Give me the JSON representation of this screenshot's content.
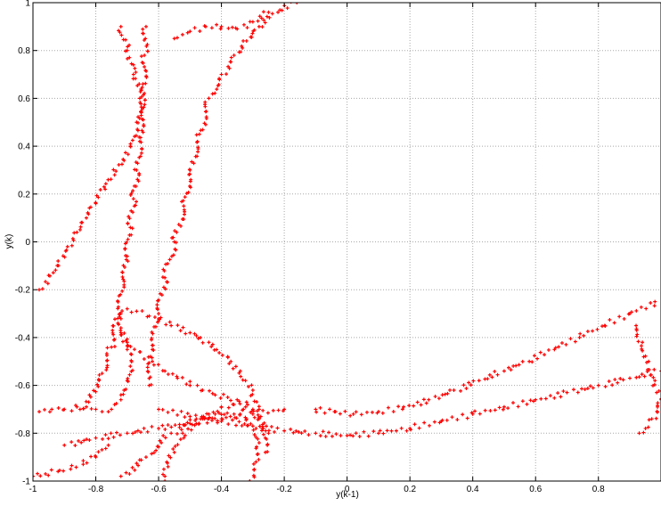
{
  "chart_data": {
    "type": "scatter",
    "title": "",
    "xlabel": "y(k-1)",
    "ylabel": "y(k)",
    "xlim": [
      -1,
      1
    ],
    "ylim": [
      -1,
      1
    ],
    "grid": true,
    "legend": "none",
    "marker": "+",
    "marker_color": "#ff0000",
    "x_tick_labels": [
      "-1",
      "-0.8",
      "-0.6",
      "-0.4",
      "-0.2",
      "0",
      "0.2",
      "0.4",
      "0.6",
      "0.8"
    ],
    "y_tick_labels": [
      "1",
      "0.8",
      "0.6",
      "0.4",
      "0.2",
      "0",
      "-0.2",
      "-0.4",
      "-0.6",
      "-0.8",
      "-1"
    ],
    "x_ticks": [
      -1,
      -0.8,
      -0.6,
      -0.4,
      -0.2,
      0,
      0.2,
      0.4,
      0.6,
      0.8
    ],
    "y_ticks": [
      1,
      0.8,
      0.6,
      0.4,
      0.2,
      0,
      -0.2,
      -0.4,
      -0.6,
      -0.8,
      -1
    ],
    "series": [
      {
        "x": [
          -0.85,
          -0.82,
          -0.78,
          -0.75,
          -0.73,
          -0.71,
          -0.7,
          -0.69,
          -0.68,
          -0.67,
          -0.66,
          -0.655,
          -0.65,
          -0.645,
          -0.64,
          -0.63,
          -0.62,
          -0.6,
          -0.58,
          -0.55,
          -0.52,
          -0.5,
          -0.47,
          -0.44,
          -0.4,
          -0.36,
          -0.32,
          -0.28,
          -0.22,
          -0.16,
          -0.1,
          -0.04,
          0.02,
          0.1,
          0.18,
          0.26,
          0.34,
          0.42,
          0.5,
          0.58,
          0.66,
          0.74,
          0.82,
          0.9,
          0.98,
          -0.98,
          -0.95,
          -0.92,
          -0.89,
          -0.86,
          -0.83,
          -0.8,
          -0.77,
          -0.74,
          -0.71,
          -0.69,
          -0.67,
          -0.66,
          -0.68,
          -0.7,
          -0.72,
          -0.76,
          -0.8,
          -0.84,
          -0.88,
          -0.92,
          -0.96,
          -1.0,
          -0.72,
          -0.7,
          -0.69,
          -0.7,
          -0.71,
          -0.72,
          -0.74,
          -0.75,
          -0.76,
          -0.78,
          -0.8,
          -0.83,
          -0.86,
          -0.9,
          -0.94,
          -0.98,
          -0.25,
          -0.28,
          -0.3,
          -0.32,
          -0.35,
          -0.38,
          -0.42,
          -0.46,
          -0.5,
          -0.54,
          -0.58,
          -0.62,
          -0.66,
          -0.7,
          -0.72,
          -0.72,
          -0.7,
          -0.67,
          -0.63,
          -0.6,
          -0.56,
          -0.5,
          -0.44,
          -0.38,
          -0.34,
          -0.3,
          -0.28,
          -0.27,
          -0.26,
          -0.72,
          -0.64,
          -0.56,
          -0.48,
          -0.42,
          -0.36,
          -0.32,
          -0.29,
          -0.28,
          -0.29,
          -0.31,
          -0.33,
          -0.36,
          -0.4,
          -0.44,
          -0.48,
          -0.52,
          -0.55,
          -0.57,
          -0.58,
          -0.58,
          -0.6,
          -0.5,
          -0.4,
          -0.3,
          -0.2,
          -0.1,
          0.0,
          0.1,
          0.2,
          0.3,
          0.4,
          0.5,
          0.6,
          0.7,
          0.8,
          0.9,
          1.0,
          0.92,
          0.94,
          0.96,
          0.98,
          1.0,
          0.97,
          0.95,
          0.93,
          -0.9,
          -0.8,
          -0.7,
          -0.6,
          -0.5,
          -0.4,
          -0.3,
          -0.2,
          -0.55,
          -0.5,
          -0.45,
          -0.4,
          -0.35,
          -0.3,
          -0.25
        ],
        "y": [
          -0.7,
          -0.64,
          -0.55,
          -0.44,
          -0.32,
          -0.18,
          -0.06,
          0.06,
          0.18,
          0.3,
          0.42,
          0.54,
          0.66,
          0.78,
          0.9,
          -0.6,
          -0.45,
          -0.3,
          -0.15,
          0.0,
          0.15,
          0.3,
          0.45,
          0.6,
          0.7,
          0.78,
          0.84,
          0.9,
          0.96,
          1.0,
          -0.7,
          -0.71,
          -0.72,
          -0.71,
          -0.69,
          -0.66,
          -0.62,
          -0.58,
          -0.54,
          -0.5,
          -0.45,
          -0.4,
          -0.35,
          -0.3,
          -0.25,
          -0.2,
          -0.14,
          -0.08,
          -0.02,
          0.04,
          0.1,
          0.16,
          0.22,
          0.28,
          0.34,
          0.4,
          0.5,
          0.6,
          0.7,
          0.8,
          0.9,
          -0.85,
          -0.9,
          -0.93,
          -0.95,
          -0.96,
          -0.97,
          -0.98,
          -0.38,
          -0.45,
          -0.52,
          -0.58,
          -0.62,
          -0.66,
          -0.68,
          -0.7,
          -0.71,
          -0.71,
          -0.7,
          -0.69,
          -0.69,
          -0.7,
          -0.7,
          -0.71,
          -0.8,
          -0.74,
          -0.7,
          -0.67,
          -0.66,
          -0.65,
          -0.64,
          -0.62,
          -0.6,
          -0.57,
          -0.54,
          -0.5,
          -0.46,
          -0.42,
          -0.36,
          -0.3,
          -0.28,
          -0.29,
          -0.31,
          -0.33,
          -0.35,
          -0.38,
          -0.42,
          -0.48,
          -0.54,
          -0.62,
          -0.7,
          -0.78,
          -0.88,
          -0.98,
          -0.9,
          -0.8,
          -0.74,
          -0.72,
          -0.72,
          -0.74,
          -0.78,
          -0.84,
          -0.92,
          -1.0,
          -0.7,
          -0.68,
          -0.69,
          -0.72,
          -0.76,
          -0.82,
          -0.88,
          -0.94,
          -0.98,
          -1.0,
          -0.7,
          -0.73,
          -0.75,
          -0.77,
          -0.79,
          -0.8,
          -0.81,
          -0.8,
          -0.78,
          -0.75,
          -0.72,
          -0.69,
          -0.66,
          -0.63,
          -0.6,
          -0.57,
          -0.54,
          -0.35,
          -0.42,
          -0.5,
          -0.58,
          -0.66,
          -0.74,
          -0.78,
          -0.8,
          -0.85,
          -0.82,
          -0.8,
          -0.78,
          -0.76,
          -0.74,
          -0.72,
          -0.7,
          0.85,
          0.88,
          0.9,
          0.9,
          0.89,
          0.92,
          0.96
        ]
      }
    ]
  }
}
